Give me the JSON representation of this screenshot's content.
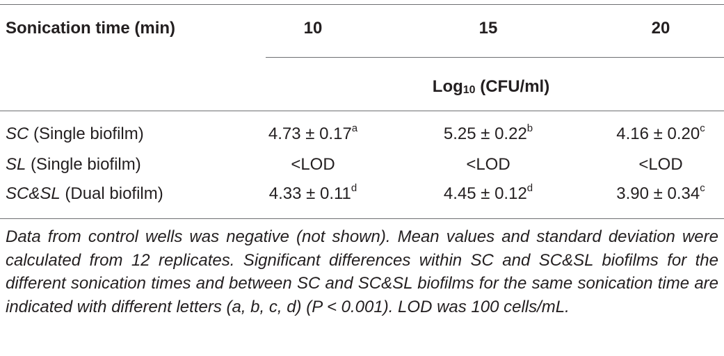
{
  "table": {
    "header": {
      "row_label": "Sonication time (min)",
      "times": [
        "10",
        "15",
        "20"
      ],
      "unit_main": "Log",
      "unit_sub": "10",
      "unit_rest": " (CFU/ml)"
    },
    "rows": [
      {
        "organism": "SC",
        "desc": " (Single biofilm)",
        "values": [
          {
            "value": "4.73 ± 0.17",
            "sup": "a"
          },
          {
            "value": "5.25 ± 0.22",
            "sup": "b"
          },
          {
            "value": "4.16 ± 0.20",
            "sup": "c"
          }
        ]
      },
      {
        "organism": "SL",
        "desc": " (Single biofilm)",
        "values": [
          {
            "value": "<LOD",
            "sup": ""
          },
          {
            "value": "<LOD",
            "sup": ""
          },
          {
            "value": "<LOD",
            "sup": ""
          }
        ]
      },
      {
        "organism": "SC&SL",
        "desc": " (Dual biofilm)",
        "values": [
          {
            "value": "4.33 ± 0.11",
            "sup": "d"
          },
          {
            "value": "4.45 ± 0.12",
            "sup": "d"
          },
          {
            "value": "3.90 ± 0.34",
            "sup": "c"
          }
        ]
      }
    ]
  },
  "footnote": "Data from control wells was negative (not shown). Mean values and standard deviation were calculated from 12 replicates. Significant differences within SC and SC&SL biofilms for the different sonication times and between SC and SC&SL biofilms for the same sonication time are indicated with different letters (a, b, c, d) (P < 0.001). LOD was 100 cells/mL."
}
